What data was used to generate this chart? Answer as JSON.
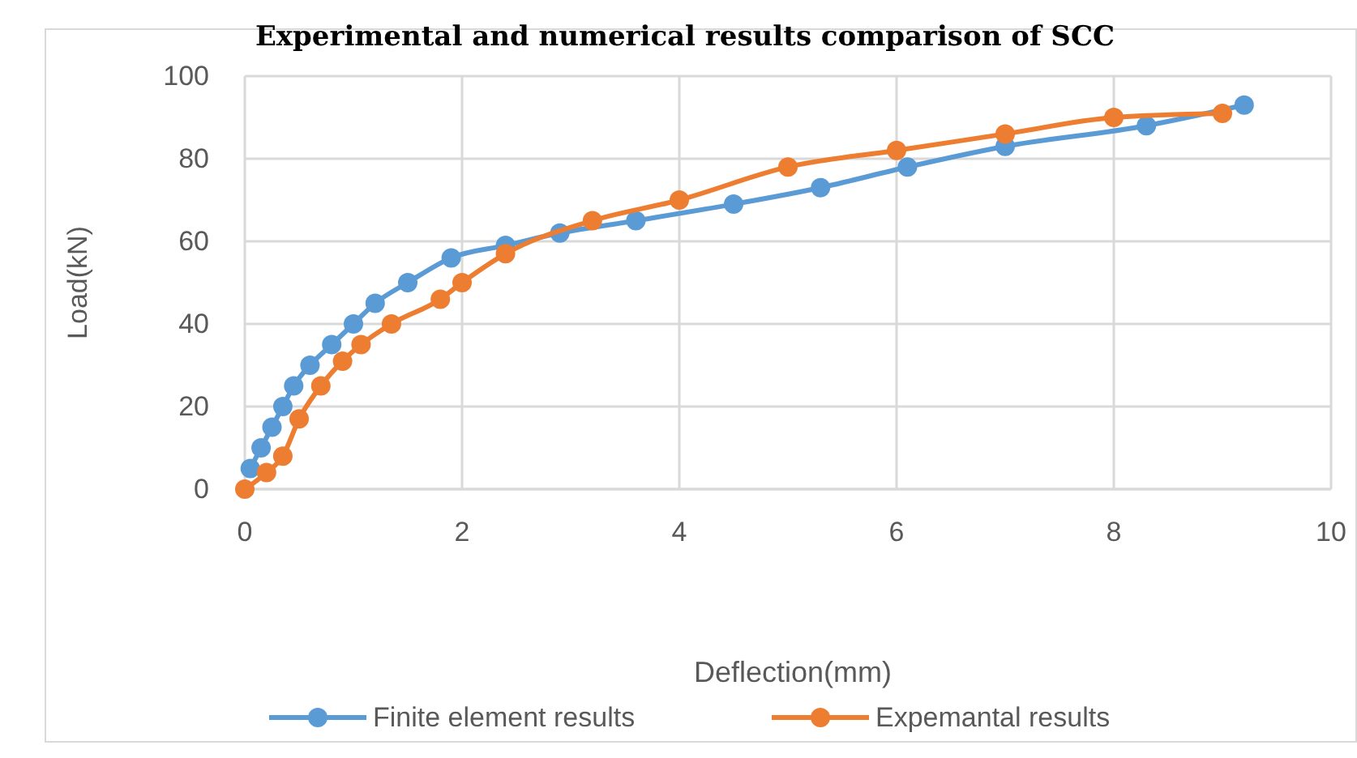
{
  "chart_data": {
    "type": "line",
    "title": "Experimental and numerical results comparison of SCC",
    "xlabel": "Deflection(mm)",
    "ylabel": "Load(kN)",
    "xlim": [
      0,
      10
    ],
    "xticks": [
      0,
      2,
      4,
      6,
      8,
      10
    ],
    "ylim": [
      0,
      100
    ],
    "yticks": [
      0,
      20,
      40,
      60,
      80,
      100
    ],
    "grid": true,
    "legend": "bottom",
    "marker": "circle",
    "line_style": "solid",
    "series": [
      {
        "name": "Finite element results",
        "color": "#5b9bd5",
        "x": [
          0.05,
          0.15,
          0.25,
          0.35,
          0.45,
          0.6,
          0.8,
          1,
          1.2,
          1.5,
          1.9,
          2.4,
          2.9,
          3.6,
          4.5,
          5.3,
          6.1,
          7,
          8.3,
          9.2
        ],
        "values": [
          5,
          10,
          15,
          20,
          25,
          30,
          35,
          40,
          45,
          50,
          56,
          59,
          62,
          65,
          69,
          73,
          78,
          83,
          88,
          93
        ]
      },
      {
        "name": "Expemantal results",
        "color": "#ed7d31",
        "x": [
          0,
          0.2,
          0.35,
          0.5,
          0.7,
          0.9,
          1.07,
          1.35,
          1.8,
          2,
          2.4,
          3.2,
          4,
          5,
          6,
          7,
          8,
          9
        ],
        "values": [
          0,
          4,
          8,
          17,
          25,
          31,
          35,
          40,
          46,
          50,
          57,
          65,
          70,
          78,
          82,
          86,
          90,
          91
        ]
      }
    ]
  }
}
